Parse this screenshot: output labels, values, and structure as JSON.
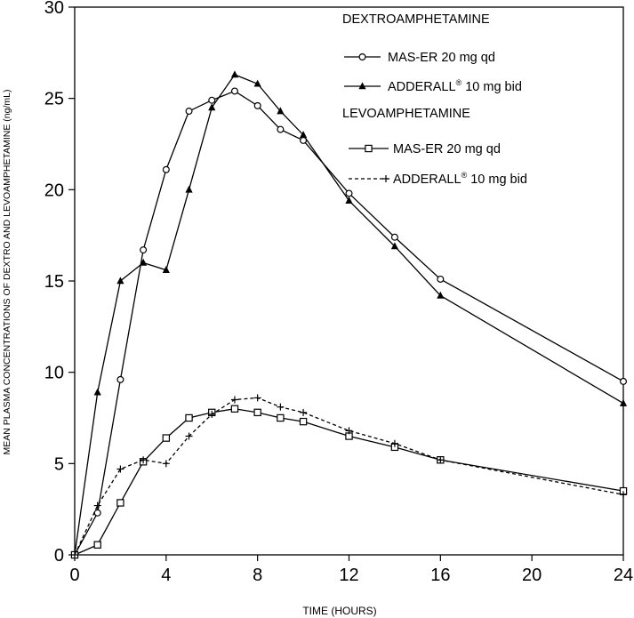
{
  "chart_data": {
    "type": "line",
    "title": "",
    "xlabel": "TIME (HOURS)",
    "ylabel": "MEAN PLASMA CONCENTRATIONS OF DEXTRO AND LEVOAMPHETAMINE (ng/mL)",
    "xlim": [
      0,
      24
    ],
    "ylim": [
      0,
      30
    ],
    "xticks": [
      0,
      4,
      8,
      12,
      16,
      20,
      24
    ],
    "yticks": [
      0,
      5,
      10,
      15,
      20,
      25,
      30
    ],
    "grid": false,
    "legend_groups": [
      {
        "title": "DEXTROAMPHETAMINE",
        "series": [
          0,
          1
        ]
      },
      {
        "title": "LEVOAMPHETAMINE",
        "series": [
          2,
          3
        ]
      }
    ],
    "series": [
      {
        "name": "MAS-ER 20 mg qd",
        "label_main": "MAS-ER 20 mg qd",
        "label_sup": "",
        "label_tail": "",
        "group": "DEXTROAMPHETAMINE",
        "marker": "circle",
        "dash": "solid",
        "x": [
          0,
          1,
          2,
          3,
          4,
          5,
          6,
          7,
          8,
          9,
          10,
          12,
          14,
          16,
          24
        ],
        "y": [
          0,
          2.3,
          9.6,
          16.7,
          21.1,
          24.3,
          24.9,
          25.4,
          24.6,
          23.3,
          22.7,
          19.8,
          17.4,
          15.1,
          9.5
        ]
      },
      {
        "name": "ADDERALL® 10 mg bid",
        "label_main": "ADDERALL",
        "label_sup": "®",
        "label_tail": " 10 mg bid",
        "group": "DEXTROAMPHETAMINE",
        "marker": "triangle",
        "dash": "solid",
        "x": [
          0,
          1,
          2,
          3,
          4,
          5,
          6,
          7,
          8,
          9,
          10,
          12,
          14,
          16,
          24
        ],
        "y": [
          0,
          8.9,
          15.0,
          16.0,
          15.6,
          20.0,
          24.5,
          26.3,
          25.8,
          24.3,
          23.0,
          19.4,
          16.9,
          14.2,
          8.3
        ]
      },
      {
        "name": "MAS-ER 20 mg qd",
        "label_main": "MAS-ER 20 mg qd",
        "label_sup": "",
        "label_tail": "",
        "group": "LEVOAMPHETAMINE",
        "marker": "square",
        "dash": "solid",
        "x": [
          0,
          1,
          2,
          3,
          4,
          5,
          6,
          7,
          8,
          9,
          10,
          12,
          14,
          16,
          24
        ],
        "y": [
          0,
          0.55,
          2.85,
          5.1,
          6.4,
          7.5,
          7.8,
          8.0,
          7.8,
          7.5,
          7.3,
          6.5,
          5.9,
          5.2,
          3.5
        ]
      },
      {
        "name": "ADDERALL® 10 mg bid",
        "label_main": "ADDERALL",
        "label_sup": "®",
        "label_tail": " 10 mg bid",
        "group": "LEVOAMPHETAMINE",
        "marker": "plus",
        "dash": "dashed",
        "x": [
          0,
          1,
          2,
          3,
          4,
          5,
          6,
          7,
          8,
          9,
          10,
          12,
          14,
          16,
          24
        ],
        "y": [
          0,
          2.7,
          4.7,
          5.2,
          5.0,
          6.5,
          7.7,
          8.5,
          8.6,
          8.1,
          7.8,
          6.8,
          6.1,
          5.2,
          3.3
        ]
      }
    ]
  }
}
